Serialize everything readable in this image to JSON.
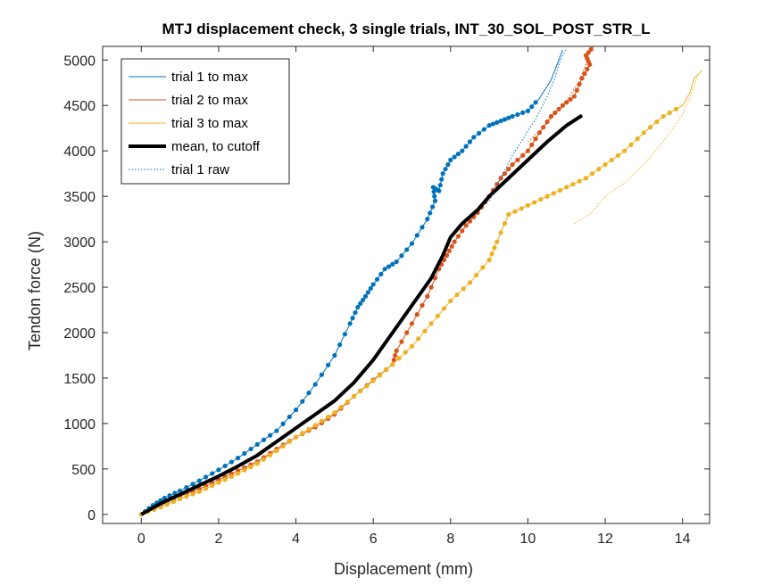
{
  "chart_data": {
    "type": "line",
    "title": "MTJ displacement check, 3 single trials, INT_30_SOL_POST_STR_L",
    "xlabel": "Displacement (mm)",
    "ylabel": "Tendon force (N)",
    "xlim": [
      -1,
      14.7
    ],
    "ylim": [
      -100,
      5150
    ],
    "xticks": [
      0,
      2,
      4,
      6,
      8,
      10,
      12,
      14
    ],
    "yticks": [
      0,
      500,
      1000,
      1500,
      2000,
      2500,
      3000,
      3500,
      4000,
      4500,
      5000
    ],
    "legend_position": "top-left",
    "grid": false,
    "series": [
      {
        "name": "trial 1 to max",
        "color": "#0072BD",
        "style": "solid-dots",
        "x": [
          0,
          0.3,
          0.6,
          1.0,
          1.5,
          2.0,
          2.5,
          3.0,
          3.5,
          4.0,
          4.5,
          5.0,
          5.4,
          5.6,
          5.8,
          6.0,
          6.3,
          6.6,
          7.0,
          7.4,
          7.6,
          7.55,
          7.7,
          7.8,
          8.0,
          8.3,
          8.6,
          9.0,
          9.3,
          9.6,
          10.0,
          10.3,
          10.6,
          10.8,
          10.9
        ],
        "y": [
          0,
          100,
          180,
          260,
          370,
          490,
          620,
          770,
          920,
          1150,
          1430,
          1750,
          2100,
          2280,
          2400,
          2530,
          2700,
          2780,
          2980,
          3250,
          3450,
          3600,
          3560,
          3750,
          3900,
          4000,
          4150,
          4280,
          4330,
          4380,
          4440,
          4580,
          4780,
          5000,
          5110
        ]
      },
      {
        "name": "trial 2 to max",
        "color": "#D95319",
        "style": "solid-dots",
        "x": [
          0,
          0.5,
          1.0,
          1.5,
          2.0,
          2.5,
          3.0,
          3.5,
          4.0,
          4.5,
          5.0,
          5.5,
          6.0,
          6.5,
          6.6,
          7.0,
          7.4,
          7.7,
          7.9,
          8.1,
          8.4,
          8.7,
          9.0,
          9.3,
          9.6,
          10.0,
          10.3,
          10.6,
          10.9,
          11.2,
          11.4,
          11.6,
          11.5,
          11.7
        ],
        "y": [
          0,
          100,
          200,
          280,
          380,
          480,
          580,
          720,
          850,
          960,
          1100,
          1300,
          1480,
          1650,
          1800,
          2100,
          2400,
          2700,
          2850,
          3000,
          3180,
          3320,
          3500,
          3700,
          3850,
          4000,
          4200,
          4380,
          4500,
          4600,
          4800,
          4950,
          5050,
          5150
        ]
      },
      {
        "name": "trial 3 to max",
        "color": "#EDB120",
        "style": "solid-dots",
        "x": [
          0,
          0.5,
          1.0,
          1.5,
          2.0,
          2.5,
          3.0,
          3.5,
          4.0,
          4.5,
          5.0,
          5.5,
          6.0,
          6.5,
          7.0,
          7.5,
          8.0,
          8.5,
          9.0,
          9.2,
          9.5,
          10.0,
          10.5,
          11.0,
          11.5,
          12.0,
          12.5,
          13.0,
          13.5,
          14.0,
          14.2,
          14.3,
          14.5
        ],
        "y": [
          0,
          80,
          170,
          250,
          350,
          450,
          560,
          700,
          850,
          980,
          1120,
          1300,
          1470,
          1650,
          1850,
          2100,
          2350,
          2550,
          2800,
          3000,
          3300,
          3400,
          3500,
          3600,
          3700,
          3850,
          4000,
          4200,
          4380,
          4500,
          4650,
          4800,
          4880
        ]
      },
      {
        "name": "mean, to cutoff",
        "color": "#000000",
        "style": "thick",
        "x": [
          0,
          0.5,
          1.0,
          1.5,
          2.0,
          2.5,
          3.0,
          3.5,
          4.0,
          4.5,
          5.0,
          5.5,
          6.0,
          6.5,
          7.0,
          7.5,
          7.8,
          8.0,
          8.3,
          8.7,
          9.0,
          9.5,
          10.0,
          10.5,
          11.0,
          11.4
        ],
        "y": [
          0,
          120,
          220,
          320,
          420,
          530,
          650,
          800,
          950,
          1100,
          1250,
          1450,
          1700,
          2000,
          2300,
          2600,
          2850,
          3050,
          3200,
          3350,
          3500,
          3700,
          3900,
          4100,
          4280,
          4390
        ]
      },
      {
        "name": "trial 1 raw",
        "color": "#0072BD",
        "style": "dotted",
        "x": [
          9.0,
          9.3,
          9.6,
          9.9,
          10.2,
          10.5,
          10.7,
          10.8,
          10.9,
          11.0
        ],
        "y": [
          3450,
          3700,
          3950,
          4150,
          4350,
          4600,
          4800,
          4950,
          5050,
          5120
        ]
      }
    ],
    "extra_raw_traces": [
      {
        "color": "#D95319",
        "style": "dotted",
        "x": [
          10.0,
          10.5,
          11.0,
          11.3,
          11.5,
          11.6
        ],
        "y": [
          4100,
          4300,
          4550,
          4750,
          4950,
          5120
        ]
      },
      {
        "color": "#EDB120",
        "style": "dotted",
        "x": [
          11.2,
          11.6,
          12.0,
          12.5,
          13.0,
          13.5,
          14.0,
          14.3,
          14.4
        ],
        "y": [
          3200,
          3300,
          3500,
          3650,
          3850,
          4100,
          4400,
          4700,
          4850
        ]
      }
    ]
  }
}
